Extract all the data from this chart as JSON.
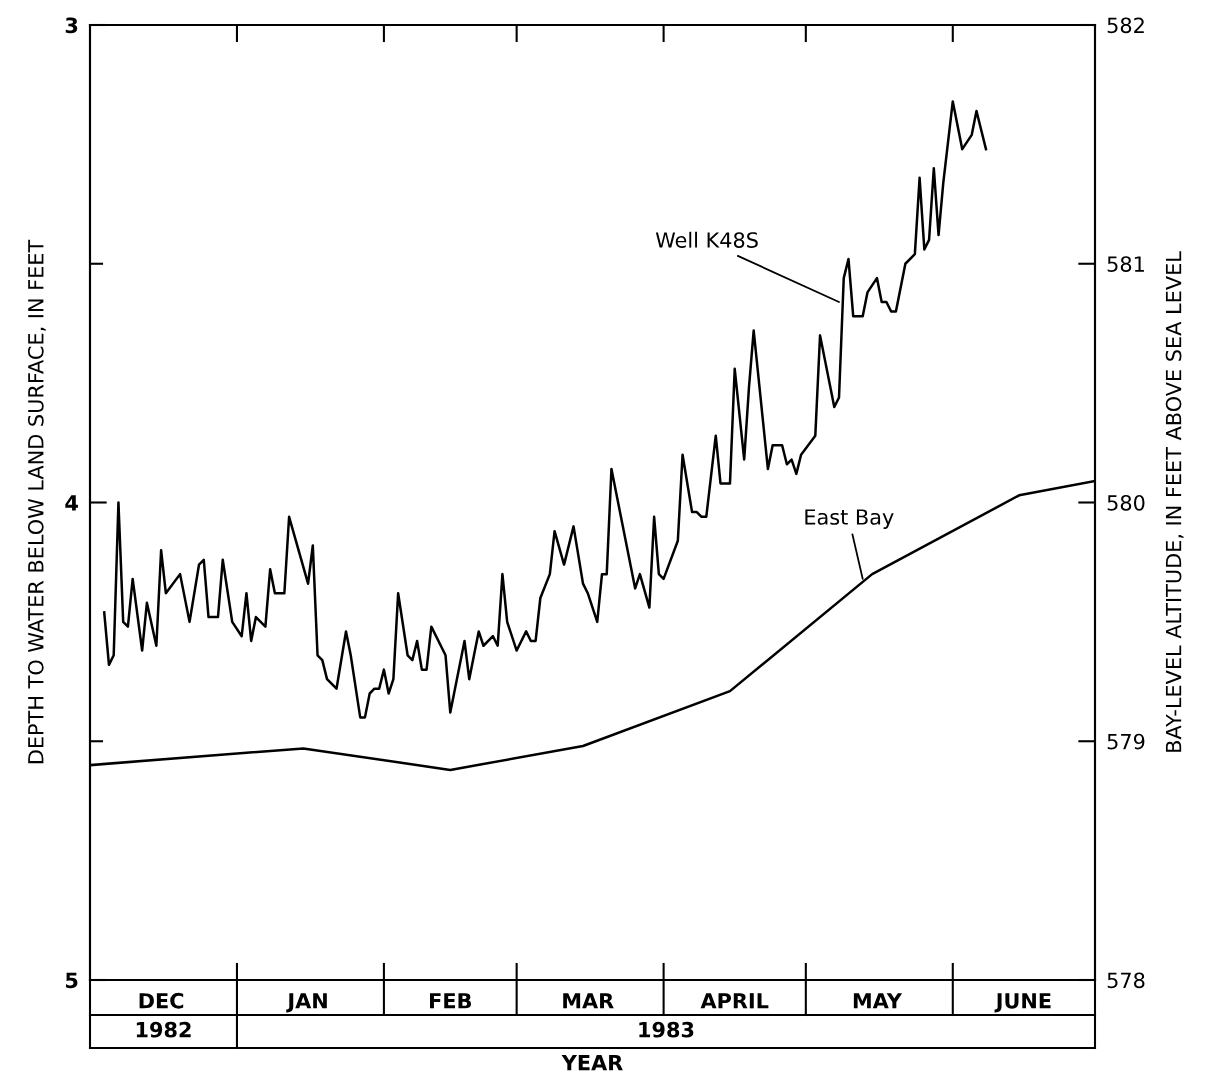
{
  "chart_data": {
    "type": "line",
    "xlabel": "YEAR",
    "ylabel": "DEPTH TO WATER BELOW LAND SURFACE, IN FEET",
    "y2label": "BAY-LEVEL ALTITUDE, IN FEET ABOVE SEA LEVEL",
    "xlim": [
      "1982-12-01",
      "1983-07-01"
    ],
    "xticks": [
      {
        "value": "1982-12-16",
        "label": "DEC"
      },
      {
        "value": "1983-01-01",
        "label": null
      },
      {
        "value": "1983-01-16",
        "label": "JAN"
      },
      {
        "value": "1983-02-01",
        "label": null
      },
      {
        "value": "1983-02-15",
        "label": "FEB"
      },
      {
        "value": "1983-03-01",
        "label": null
      },
      {
        "value": "1983-03-16",
        "label": "MAR"
      },
      {
        "value": "1983-04-01",
        "label": null
      },
      {
        "value": "1983-04-16",
        "label": "APRIL"
      },
      {
        "value": "1983-05-01",
        "label": null
      },
      {
        "value": "1983-05-16",
        "label": "MAY"
      },
      {
        "value": "1983-06-01",
        "label": null
      },
      {
        "value": "1983-06-16",
        "label": "JUNE"
      }
    ],
    "ylim": [
      5,
      3
    ],
    "yticks": [
      3,
      {
        "value": 3.5,
        "label": null
      },
      4,
      {
        "value": 4.5,
        "label": null
      },
      5
    ],
    "y2lim": [
      578,
      582
    ],
    "y2ticks": [
      578,
      579,
      580,
      581,
      582
    ],
    "grid": false,
    "legend": false,
    "series": [
      {
        "color": "#000000",
        "x": [
          "1982-12-04",
          "1982-12-05",
          "1982-12-06",
          "1982-12-07",
          "1982-12-08",
          "1982-12-09",
          "1982-12-10",
          "1982-12-12",
          "1982-12-13",
          "1982-12-15",
          "1982-12-16",
          "1982-12-17",
          "1982-12-20",
          "1982-12-22",
          "1982-12-24",
          "1982-12-25",
          "1982-12-26",
          "1982-12-28",
          "1982-12-29",
          "1982-12-31",
          "1983-01-02",
          "1983-01-03",
          "1983-01-04",
          "1983-01-05",
          "1983-01-07",
          "1983-01-08",
          "1983-01-09",
          "1983-01-11",
          "1983-01-12",
          "1983-01-16",
          "1983-01-17",
          "1983-01-18",
          "1983-01-19",
          "1983-01-20",
          "1983-01-22",
          "1983-01-24",
          "1983-01-25",
          "1983-01-27",
          "1983-01-28",
          "1983-01-29",
          "1983-01-30",
          "1983-01-31",
          "1983-02-01",
          "1983-02-02",
          "1983-02-03",
          "1983-02-04",
          "1983-02-06",
          "1983-02-07",
          "1983-02-08",
          "1983-02-09",
          "1983-02-10",
          "1983-02-11",
          "1983-02-14",
          "1983-02-15",
          "1983-02-18",
          "1983-02-19",
          "1983-02-20",
          "1983-02-21",
          "1983-02-22",
          "1983-02-24",
          "1983-02-25",
          "1983-02-26",
          "1983-02-27",
          "1983-03-01",
          "1983-03-03",
          "1983-03-04",
          "1983-03-05",
          "1983-03-06",
          "1983-03-08",
          "1983-03-09",
          "1983-03-11",
          "1983-03-13",
          "1983-03-15",
          "1983-03-16",
          "1983-03-18",
          "1983-03-19",
          "1983-03-20",
          "1983-03-21",
          "1983-03-26",
          "1983-03-27",
          "1983-03-29",
          "1983-03-30",
          "1983-03-31",
          "1983-04-01",
          "1983-04-04",
          "1983-04-05",
          "1983-04-07",
          "1983-04-08",
          "1983-04-09",
          "1983-04-10",
          "1983-04-12",
          "1983-04-13",
          "1983-04-15",
          "1983-04-16",
          "1983-04-18",
          "1983-04-19",
          "1983-04-20",
          "1983-04-23",
          "1983-04-24",
          "1983-04-26",
          "1983-04-27",
          "1983-04-28",
          "1983-04-29",
          "1983-04-30",
          "1983-05-03",
          "1983-05-04",
          "1983-05-07",
          "1983-05-08",
          "1983-05-09",
          "1983-05-10",
          "1983-05-11",
          "1983-05-13",
          "1983-05-14",
          "1983-05-16",
          "1983-05-17",
          "1983-05-18",
          "1983-05-19",
          "1983-05-20",
          "1983-05-22",
          "1983-05-24",
          "1983-05-25",
          "1983-05-26",
          "1983-05-27",
          "1983-05-28",
          "1983-05-29",
          "1983-05-30",
          "1983-06-01",
          "1983-06-03",
          "1983-06-05",
          "1983-06-06",
          "1983-06-08"
        ],
        "values": [
          4.23,
          4.34,
          4.32,
          4.0,
          4.25,
          4.26,
          4.16,
          4.31,
          4.21,
          4.3,
          4.1,
          4.19,
          4.15,
          4.25,
          4.13,
          4.12,
          4.24,
          4.24,
          4.12,
          4.25,
          4.28,
          4.19,
          4.29,
          4.24,
          4.26,
          4.14,
          4.19,
          4.19,
          4.03,
          4.17,
          4.09,
          4.32,
          4.33,
          4.37,
          4.39,
          4.27,
          4.32,
          4.45,
          4.45,
          4.4,
          4.39,
          4.39,
          4.35,
          4.4,
          4.37,
          4.19,
          4.32,
          4.33,
          4.29,
          4.35,
          4.35,
          4.26,
          4.32,
          4.44,
          4.29,
          4.37,
          4.32,
          4.27,
          4.3,
          4.28,
          4.3,
          4.15,
          4.25,
          4.31,
          4.27,
          4.29,
          4.29,
          4.2,
          4.15,
          4.06,
          4.13,
          4.05,
          4.17,
          4.19,
          4.25,
          4.15,
          4.15,
          3.93,
          4.18,
          4.15,
          4.22,
          4.03,
          4.15,
          4.16,
          4.08,
          3.9,
          4.02,
          4.02,
          4.03,
          4.03,
          3.86,
          3.96,
          3.96,
          3.72,
          3.91,
          3.76,
          3.64,
          3.93,
          3.88,
          3.88,
          3.92,
          3.91,
          3.94,
          3.9,
          3.86,
          3.65,
          3.8,
          3.78,
          3.53,
          3.49,
          3.61,
          3.61,
          3.56,
          3.53,
          3.58,
          3.58,
          3.6,
          3.6,
          3.5,
          3.48,
          3.32,
          3.47,
          3.45,
          3.3,
          3.44,
          3.33,
          3.16,
          3.26,
          3.23,
          3.18,
          3.26
        ]
      },
      {
        "color": "#000000",
        "axis": "y2",
        "x": [
          "1982-12-01",
          "1983-01-15",
          "1983-02-15",
          "1983-03-15",
          "1983-04-15",
          "1983-05-15",
          "1983-06-15",
          "1983-07-01"
        ],
        "values": [
          578.9,
          578.97,
          578.88,
          578.98,
          579.21,
          579.7,
          580.03,
          580.09
        ]
      }
    ],
    "annotations": [
      {
        "text": "Well K48S",
        "x": "1983-05-08",
        "y": 3.58
      },
      {
        "text": "East Bay",
        "x": "1983-05-13",
        "y": 4.16
      },
      "1982",
      "1983"
    ]
  }
}
